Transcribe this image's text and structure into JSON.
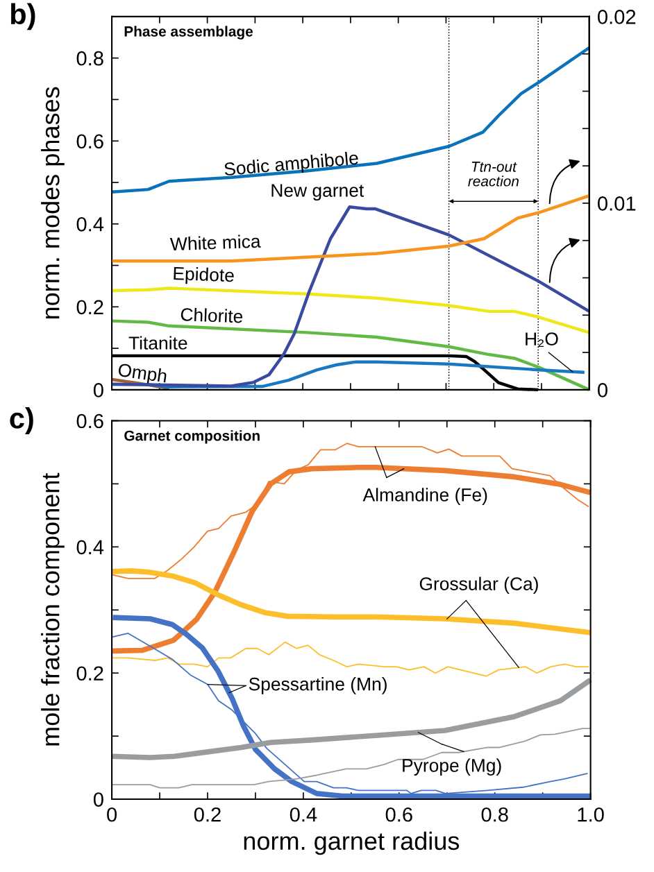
{
  "chart_data": [
    {
      "type": "line",
      "title": "Phase assemblage",
      "ylabel": "norm. modes phases",
      "xlim": [
        0,
        1
      ],
      "xticks": [
        0,
        0.1,
        0.2,
        0.3,
        0.4,
        0.5,
        0.6,
        0.7,
        0.8,
        0.9,
        1
      ],
      "ylim": [
        0,
        0.9
      ],
      "yticks": [
        {
          "value": 0,
          "label": "0"
        },
        {
          "value": 0.1,
          "label": null
        },
        0.2,
        {
          "value": 0.3,
          "label": null
        },
        0.4,
        {
          "value": 0.5,
          "label": null
        },
        0.6,
        {
          "value": 0.7,
          "label": null
        },
        0.8
      ],
      "y2lim": [
        0,
        0.02
      ],
      "y2ticks": [
        {
          "value": 0,
          "label": "0"
        },
        {
          "value": 0.002,
          "label": null
        },
        {
          "value": 0.004,
          "label": null
        },
        {
          "value": 0.006,
          "label": null
        },
        {
          "value": 0.008,
          "label": null
        },
        0.01,
        {
          "value": 0.012,
          "label": null
        },
        {
          "value": 0.014,
          "label": null
        },
        {
          "value": 0.016,
          "label": null
        },
        {
          "value": 0.018,
          "label": null
        },
        0.02
      ],
      "tick_labels": "y",
      "grid": false,
      "legend": false,
      "marker": "none",
      "line_style": "solid",
      "ref_lines": [
        {
          "axis": "x",
          "value": 0.706,
          "color": "#000000",
          "line_style": "dotted"
        },
        {
          "axis": "x",
          "value": 0.893,
          "color": "#000000",
          "line_style": "dotted"
        }
      ],
      "annotations": [
        "b)",
        "Ttn-out\nreaction"
      ],
      "series": [
        {
          "name": "Sodic amphibole",
          "color": "#0a72ba",
          "x": [
            0,
            0.076,
            0.12,
            0.25,
            0.41,
            0.555,
            0.706,
            0.777,
            0.81,
            0.857,
            0.895,
            1.0
          ],
          "values": [
            0.477,
            0.483,
            0.503,
            0.512,
            0.528,
            0.546,
            0.587,
            0.621,
            0.661,
            0.714,
            0.742,
            0.825
          ]
        },
        {
          "name": "New garnet",
          "color": "#3a4a9f",
          "axis": "y2",
          "x": [
            0,
            0.25,
            0.297,
            0.329,
            0.36,
            0.382,
            0.414,
            0.458,
            0.498,
            0.533,
            0.551,
            0.706,
            0.895,
            1.0
          ],
          "values": [
            0.0003,
            0.0002,
            0.0004,
            0.0008,
            0.0019,
            0.003,
            0.0053,
            0.0081,
            0.0098,
            0.0097,
            0.0097,
            0.0083,
            0.0058,
            0.0042
          ]
        },
        {
          "name": "White mica",
          "color": "#f7941d",
          "axis": "y2",
          "x": [
            0,
            0.25,
            0.555,
            0.706,
            0.78,
            0.85,
            0.895,
            1.0
          ],
          "values": [
            0.0069,
            0.0069,
            0.0073,
            0.0077,
            0.0081,
            0.0092,
            0.0095,
            0.0104
          ]
        },
        {
          "name": "Epidote",
          "color": "#eee81a",
          "x": [
            0,
            0.076,
            0.12,
            0.41,
            0.555,
            0.706,
            0.79,
            0.843,
            0.895,
            1.0
          ],
          "values": [
            0.239,
            0.241,
            0.245,
            0.231,
            0.221,
            0.203,
            0.189,
            0.189,
            0.175,
            0.138
          ]
        },
        {
          "name": "Chlorite",
          "color": "#62b946",
          "x": [
            0,
            0.076,
            0.12,
            0.41,
            0.555,
            0.706,
            0.79,
            0.843,
            0.895,
            1.0
          ],
          "values": [
            0.166,
            0.163,
            0.154,
            0.138,
            0.127,
            0.104,
            0.085,
            0.076,
            0.054,
            0.0
          ]
        },
        {
          "name": "Titanite",
          "color": "#000000",
          "x": [
            0,
            0.3,
            0.6,
            0.706,
            0.743,
            0.76,
            0.78,
            0.81,
            0.85,
            0.893
          ],
          "values": [
            0.082,
            0.082,
            0.082,
            0.082,
            0.08,
            0.068,
            0.048,
            0.017,
            0.002,
            0.0
          ]
        },
        {
          "name": "Omph",
          "color": "#a0613a",
          "x": [
            0,
            0.06,
            0.12
          ],
          "values": [
            0.025,
            0.015,
            0.003
          ]
        },
        {
          "name": "H₂O",
          "color": "#1a78c2",
          "x": [
            0,
            0.076,
            0.116,
            0.315,
            0.37,
            0.43,
            0.47,
            0.51,
            0.555,
            0.706,
            0.895,
            0.99
          ],
          "values": [
            0.013,
            0.013,
            0.007,
            0.008,
            0.023,
            0.048,
            0.06,
            0.067,
            0.067,
            0.062,
            0.048,
            0.042
          ]
        }
      ]
    },
    {
      "type": "line",
      "title": "Garnet composition",
      "xlabel": "norm. garnet radius",
      "ylabel": "mole fraction component",
      "xlim": [
        0,
        1
      ],
      "xticks": [
        0,
        {
          "value": 0.1,
          "label": null
        },
        0.2,
        {
          "value": 0.3,
          "label": null
        },
        0.4,
        {
          "value": 0.5,
          "label": null
        },
        0.6,
        {
          "value": 0.7,
          "label": null
        },
        0.8,
        {
          "value": 0.9,
          "label": null
        },
        {
          "value": 1,
          "label": "1.0"
        }
      ],
      "ylim": [
        0,
        0.6
      ],
      "yticks": [
        0,
        {
          "value": 0.1,
          "label": null
        },
        0.2,
        {
          "value": 0.3,
          "label": null
        },
        0.4,
        {
          "value": 0.5,
          "label": null
        },
        0.6
      ],
      "grid": false,
      "legend": false,
      "marker": "none",
      "line_style": "solid",
      "annotations": [
        "c)"
      ],
      "series": [
        {
          "name": "Almandine (Fe)",
          "color": "#ed7d31",
          "x": [
            0,
            0.064,
            0.129,
            0.177,
            0.215,
            0.254,
            0.293,
            0.332,
            0.37,
            0.418,
            0.515,
            0.551,
            0.696,
            0.841,
            0.937,
            1.0
          ],
          "values": [
            0.235,
            0.236,
            0.252,
            0.285,
            0.328,
            0.39,
            0.456,
            0.5,
            0.519,
            0.524,
            0.526,
            0.526,
            0.521,
            0.511,
            0.499,
            0.486
          ]
        },
        {
          "color": "#ed7d31",
          "x": [
            0,
            0.034,
            0.09,
            0.117,
            0.146,
            0.172,
            0.2,
            0.223,
            0.249,
            0.28,
            0.304,
            0.328,
            0.36,
            0.386,
            0.41,
            0.436,
            0.467,
            0.491,
            0.515,
            0.647,
            0.68,
            0.704,
            0.731,
            0.81,
            0.836,
            0.915,
            0.944,
            0.973,
            0.996
          ],
          "values": [
            0.356,
            0.35,
            0.35,
            0.363,
            0.381,
            0.4,
            0.425,
            0.429,
            0.449,
            0.455,
            0.468,
            0.504,
            0.5,
            0.522,
            0.53,
            0.554,
            0.554,
            0.564,
            0.559,
            0.559,
            0.549,
            0.555,
            0.544,
            0.544,
            0.524,
            0.513,
            0.493,
            0.475,
            0.464
          ]
        },
        {
          "name": "Grossular (Ca)",
          "color": "#fdbe2c",
          "x": [
            0,
            0.04,
            0.077,
            0.126,
            0.174,
            0.222,
            0.271,
            0.319,
            0.367,
            0.464,
            0.551,
            0.696,
            0.841,
            1.0
          ],
          "values": [
            0.361,
            0.362,
            0.36,
            0.354,
            0.343,
            0.324,
            0.308,
            0.296,
            0.29,
            0.289,
            0.289,
            0.286,
            0.279,
            0.264
          ]
        },
        {
          "color": "#fdbe2c",
          "x": [
            0,
            0.034,
            0.09,
            0.117,
            0.141,
            0.172,
            0.2,
            0.223,
            0.248,
            0.28,
            0.304,
            0.328,
            0.362,
            0.386,
            0.41,
            0.434,
            0.463,
            0.491,
            0.515,
            0.57,
            0.594,
            0.621,
            0.652,
            0.676,
            0.702,
            0.782,
            0.808,
            0.864,
            0.888,
            0.917,
            0.946,
            0.97,
            0.996
          ],
          "values": [
            0.224,
            0.224,
            0.22,
            0.224,
            0.214,
            0.214,
            0.21,
            0.224,
            0.224,
            0.239,
            0.239,
            0.229,
            0.249,
            0.239,
            0.244,
            0.229,
            0.22,
            0.21,
            0.214,
            0.21,
            0.21,
            0.205,
            0.21,
            0.2,
            0.21,
            0.195,
            0.205,
            0.21,
            0.2,
            0.21,
            0.214,
            0.21,
            0.21
          ]
        },
        {
          "name": "Spessartine (Mn)",
          "color": "#4472c4",
          "x": [
            0.002,
            0.08,
            0.126,
            0.155,
            0.189,
            0.222,
            0.251,
            0.275,
            0.3,
            0.34,
            0.376,
            0.428,
            0.481,
            0.6,
            0.8,
            1.0
          ],
          "values": [
            0.288,
            0.286,
            0.277,
            0.262,
            0.24,
            0.203,
            0.16,
            0.116,
            0.079,
            0.048,
            0.028,
            0.009,
            0.005,
            0.005,
            0.005,
            0.005
          ]
        },
        {
          "color": "#4472c4",
          "x": [
            0,
            0.034,
            0.077,
            0.126,
            0.164,
            0.2,
            0.223,
            0.25,
            0.275,
            0.3,
            0.323,
            0.402,
            0.428,
            0.463,
            0.49,
            0.515,
            0.616,
            0.625,
            0.646,
            0.677,
            0.697,
            0.785,
            0.859,
            0.916,
            0.945,
            0.994
          ],
          "values": [
            0.257,
            0.263,
            0.244,
            0.222,
            0.197,
            0.182,
            0.156,
            0.142,
            0.123,
            0.104,
            0.081,
            0.028,
            0.028,
            0.018,
            0.018,
            0.014,
            0.014,
            0.009,
            0.014,
            0.014,
            0.009,
            0.014,
            0.019,
            0.028,
            0.032,
            0.041
          ]
        },
        {
          "name": "Pyrope (Mg)",
          "color": "#9a9d9f",
          "x": [
            0,
            0.08,
            0.13,
            0.2,
            0.27,
            0.332,
            0.42,
            0.551,
            0.696,
            0.841,
            0.937,
            1.0
          ],
          "values": [
            0.068,
            0.066,
            0.068,
            0.075,
            0.082,
            0.09,
            0.094,
            0.101,
            0.109,
            0.131,
            0.156,
            0.189
          ]
        },
        {
          "color": "#9a9d9f",
          "x": [
            0,
            0.08,
            0.1,
            0.14,
            0.167,
            0.297,
            0.327,
            0.385,
            0.428,
            0.489,
            0.532,
            0.568,
            0.598,
            0.65,
            0.689,
            0.724,
            0.785,
            0.81,
            0.863,
            0.895,
            0.926,
            0.983,
            1.0
          ],
          "values": [
            0.023,
            0.023,
            0.018,
            0.018,
            0.023,
            0.023,
            0.028,
            0.032,
            0.038,
            0.048,
            0.048,
            0.055,
            0.063,
            0.063,
            0.074,
            0.074,
            0.082,
            0.082,
            0.092,
            0.102,
            0.103,
            0.112,
            0.112
          ]
        }
      ]
    }
  ]
}
